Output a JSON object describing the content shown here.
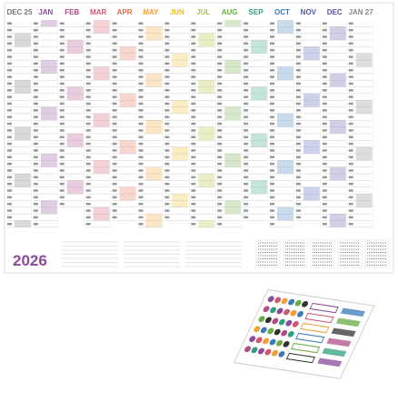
{
  "header": {
    "months": [
      "DEC 25",
      "JAN",
      "FEB",
      "MAR",
      "APR",
      "MAY",
      "JUN",
      "JUL",
      "AUG",
      "SEP",
      "OCT",
      "NOV",
      "DEC",
      "JAN 27"
    ]
  },
  "year": "2026"
}
